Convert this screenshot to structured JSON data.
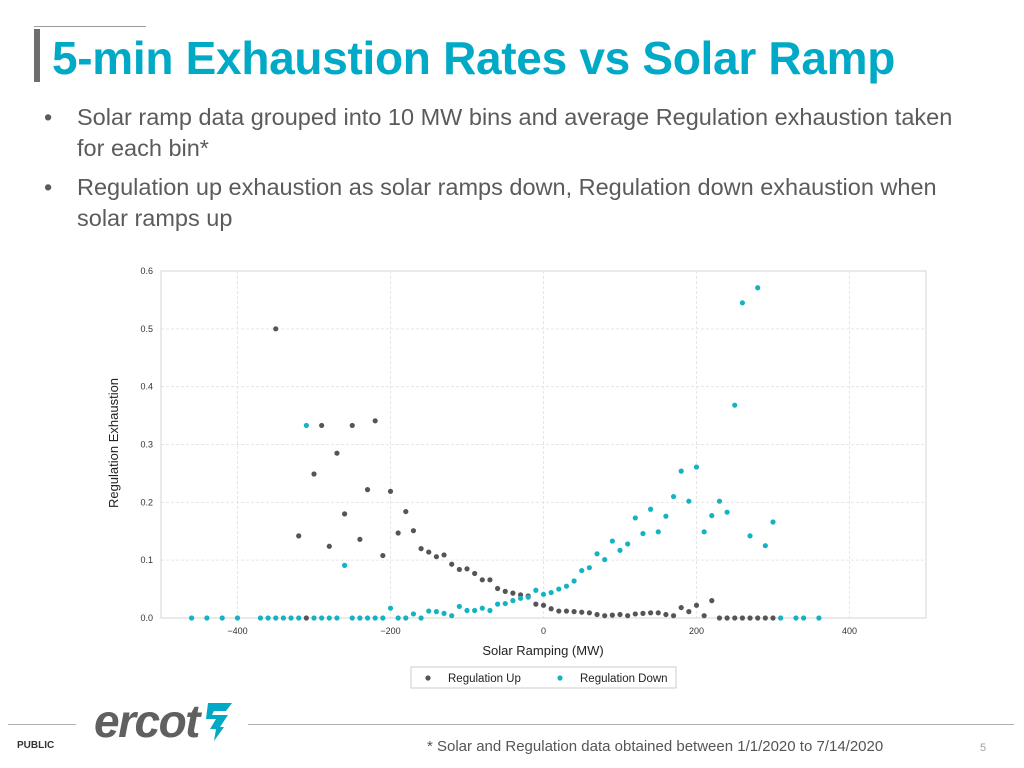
{
  "slide": {
    "title": "5-min Exhaustion Rates vs Solar Ramp",
    "bullet_symbol": "•",
    "bullets": [
      "Solar ramp data grouped into 10 MW bins and average Regulation exhaustion taken for each bin*",
      "Regulation up exhaustion as solar ramps down, Regulation down exhaustion when solar ramps up"
    ],
    "footer": {
      "classification": "PUBLIC",
      "logo_text": "ercot",
      "note": "* Solar and Regulation data obtained between 1/1/2020 to 7/14/2020",
      "page_number": "5"
    }
  },
  "colors": {
    "accent": "#00a9c6",
    "reg_up": "#555555",
    "reg_down": "#12b3c2",
    "logo": "#606060"
  },
  "chart_data": {
    "type": "scatter",
    "title": "",
    "xlabel": "Solar Ramping (MW)",
    "ylabel": "Regulation Exhaustion",
    "xlim": [
      -500,
      500
    ],
    "ylim": [
      0,
      0.6
    ],
    "x_ticks": [
      -400,
      -200,
      0,
      200,
      400
    ],
    "x_tick_labels": [
      "−400",
      "−200",
      "0",
      "200",
      "400"
    ],
    "y_ticks": [
      0,
      0.1,
      0.2,
      0.3,
      0.4,
      0.5,
      0.6
    ],
    "y_tick_labels": [
      "0.0",
      "0.1",
      "0.2",
      "0.3",
      "0.4",
      "0.5",
      "0.6"
    ],
    "grid": true,
    "legend": "bottom-center",
    "series": [
      {
        "name": "Regulation Up",
        "color": "#555555",
        "x": [
          -350,
          -320,
          -310,
          -300,
          -290,
          -280,
          -270,
          -260,
          -250,
          -240,
          -230,
          -220,
          -210,
          -200,
          -190,
          -180,
          -170,
          -160,
          -150,
          -140,
          -130,
          -120,
          -110,
          -100,
          -90,
          -80,
          -70,
          -60,
          -50,
          -40,
          -30,
          -20,
          -10,
          0,
          10,
          20,
          30,
          40,
          50,
          60,
          70,
          80,
          90,
          100,
          110,
          120,
          130,
          140,
          150,
          160,
          170,
          180,
          190,
          200,
          210,
          220,
          230,
          240,
          250,
          260,
          270,
          280,
          290,
          300
        ],
        "y": [
          0.5,
          0.142,
          0.0,
          0.249,
          0.333,
          0.124,
          0.285,
          0.18,
          0.333,
          0.136,
          0.222,
          0.341,
          0.108,
          0.219,
          0.147,
          0.184,
          0.151,
          0.12,
          0.114,
          0.106,
          0.109,
          0.093,
          0.084,
          0.085,
          0.077,
          0.066,
          0.066,
          0.051,
          0.046,
          0.043,
          0.04,
          0.038,
          0.024,
          0.022,
          0.016,
          0.012,
          0.012,
          0.011,
          0.01,
          0.009,
          0.006,
          0.004,
          0.005,
          0.006,
          0.004,
          0.007,
          0.008,
          0.009,
          0.009,
          0.006,
          0.004,
          0.018,
          0.011,
          0.022,
          0.004,
          0.03,
          0.0,
          0.0,
          0.0,
          0.0,
          0.0,
          0.0,
          0.0,
          0.0
        ]
      },
      {
        "name": "Regulation Down",
        "color": "#12b3c2",
        "x": [
          -460,
          -440,
          -420,
          -400,
          -370,
          -360,
          -350,
          -340,
          -330,
          -320,
          -310,
          -300,
          -290,
          -280,
          -270,
          -260,
          -250,
          -240,
          -230,
          -220,
          -210,
          -200,
          -190,
          -180,
          -170,
          -160,
          -150,
          -140,
          -130,
          -120,
          -110,
          -100,
          -90,
          -80,
          -70,
          -60,
          -50,
          -40,
          -30,
          -20,
          -10,
          0,
          10,
          20,
          30,
          40,
          50,
          60,
          70,
          80,
          90,
          100,
          110,
          120,
          130,
          140,
          150,
          160,
          170,
          180,
          190,
          200,
          210,
          220,
          230,
          240,
          250,
          260,
          270,
          280,
          290,
          300,
          310,
          330,
          340,
          360
        ],
        "y": [
          0.0,
          0.0,
          0.0,
          0.0,
          0.0,
          0.0,
          0.0,
          0.0,
          0.0,
          0.0,
          0.333,
          0.0,
          0.0,
          0.0,
          0.0,
          0.091,
          0.0,
          0.0,
          0.0,
          0.0,
          0.0,
          0.017,
          0.0,
          0.0,
          0.007,
          0.0,
          0.012,
          0.011,
          0.008,
          0.004,
          0.02,
          0.013,
          0.013,
          0.017,
          0.013,
          0.024,
          0.025,
          0.03,
          0.034,
          0.036,
          0.048,
          0.041,
          0.044,
          0.05,
          0.055,
          0.064,
          0.082,
          0.087,
          0.111,
          0.101,
          0.133,
          0.117,
          0.128,
          0.173,
          0.146,
          0.188,
          0.149,
          0.176,
          0.21,
          0.254,
          0.202,
          0.261,
          0.149,
          0.177,
          0.202,
          0.183,
          0.368,
          0.545,
          0.142,
          0.571,
          0.125,
          0.166,
          0.0,
          0.0,
          0.0,
          0.0
        ]
      }
    ]
  }
}
